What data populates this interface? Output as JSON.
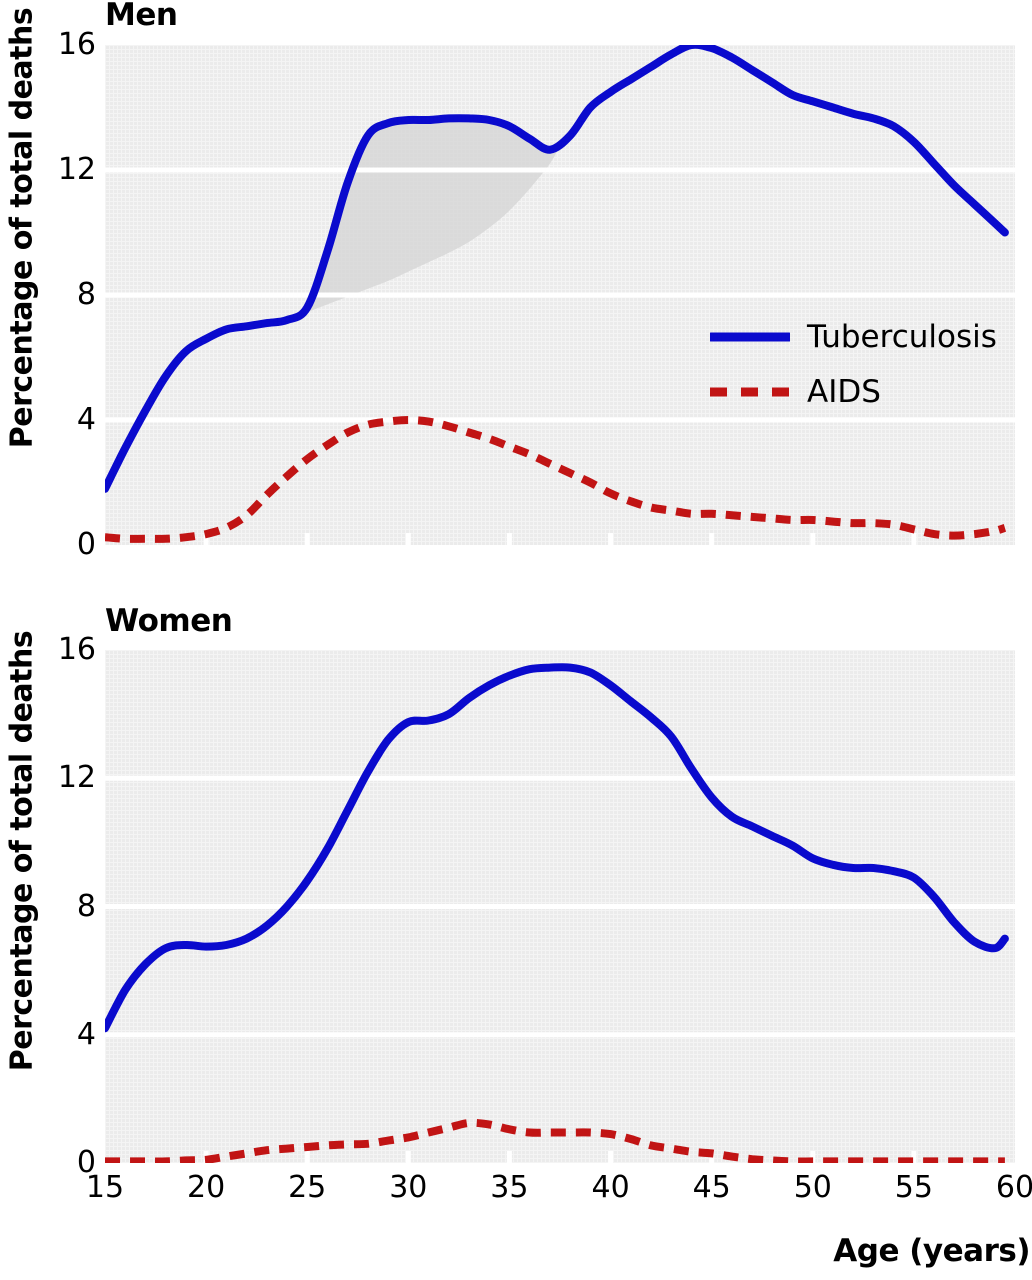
{
  "colors": {
    "tuberculosis": "#0a0acd",
    "aids": "#c11414",
    "plot_bg": "#ebebeb",
    "plot_bg_dot": "#f4f4f4",
    "gridline": "#ffffff",
    "shade": "#d7d7d7",
    "text": "#000000",
    "page_bg": "#ffffff"
  },
  "legend": {
    "items": [
      {
        "label": "Tuberculosis",
        "style": "solid"
      },
      {
        "label": "AIDS",
        "style": "dashed"
      }
    ]
  },
  "chart_data": [
    {
      "type": "line",
      "title": "Men",
      "xlabel": "",
      "ylabel": "Percentage of total deaths",
      "xlim": [
        15,
        60
      ],
      "ylim": [
        0,
        16
      ],
      "xticks": [
        15,
        20,
        25,
        30,
        35,
        40,
        45,
        50,
        55,
        60
      ],
      "yticks": [
        16,
        12,
        8,
        4,
        0
      ],
      "grid": "horizontal-white-on-gray",
      "legend_position": "middle-right",
      "x": [
        15,
        16,
        17,
        18,
        19,
        20,
        21,
        22,
        23,
        24,
        25,
        26,
        27,
        28,
        29,
        30,
        31,
        32,
        33,
        34,
        35,
        36,
        37,
        38,
        39,
        40,
        41,
        42,
        43,
        44,
        45,
        46,
        47,
        48,
        49,
        50,
        51,
        52,
        53,
        54,
        55,
        56,
        57,
        58,
        59,
        59.5
      ],
      "series": [
        {
          "name": "Tuberculosis",
          "style": "solid",
          "color": "#0a0acd",
          "y": [
            1.8,
            3.1,
            4.3,
            5.4,
            6.2,
            6.6,
            6.9,
            7.0,
            7.1,
            7.2,
            7.6,
            9.4,
            11.6,
            13.1,
            13.5,
            13.6,
            13.6,
            13.65,
            13.65,
            13.6,
            13.4,
            13.0,
            12.65,
            13.1,
            14.0,
            14.5,
            14.9,
            15.3,
            15.7,
            16.0,
            15.9,
            15.6,
            15.2,
            14.8,
            14.4,
            14.2,
            14.0,
            13.8,
            13.65,
            13.4,
            12.9,
            12.2,
            11.5,
            10.9,
            10.3,
            10.0
          ]
        },
        {
          "name": "AIDS",
          "style": "dashed",
          "color": "#c11414",
          "y": [
            0.25,
            0.2,
            0.2,
            0.2,
            0.25,
            0.35,
            0.55,
            0.95,
            1.6,
            2.2,
            2.75,
            3.2,
            3.6,
            3.85,
            3.95,
            4.0,
            3.95,
            3.8,
            3.6,
            3.4,
            3.15,
            2.9,
            2.6,
            2.3,
            2.0,
            1.65,
            1.4,
            1.2,
            1.1,
            1.0,
            1.0,
            0.95,
            0.9,
            0.85,
            0.8,
            0.8,
            0.75,
            0.7,
            0.7,
            0.65,
            0.5,
            0.35,
            0.3,
            0.35,
            0.45,
            0.55
          ]
        }
      ],
      "shaded_band": {
        "name": "shaded_area",
        "upper": [
          [
            24,
            7.2
          ],
          [
            25,
            7.6
          ],
          [
            26,
            9.4
          ],
          [
            27,
            11.6
          ],
          [
            28,
            13.1
          ],
          [
            29,
            13.5
          ],
          [
            30,
            13.6
          ],
          [
            31,
            13.6
          ],
          [
            32,
            13.65
          ],
          [
            33,
            13.65
          ],
          [
            34,
            13.6
          ],
          [
            35,
            13.4
          ],
          [
            36,
            13.0
          ],
          [
            37,
            12.65
          ],
          [
            37.5,
            12.8
          ]
        ],
        "lower": [
          [
            24,
            7.2
          ],
          [
            25,
            7.45
          ],
          [
            26,
            7.7
          ],
          [
            27,
            7.95
          ],
          [
            28,
            8.2
          ],
          [
            29,
            8.45
          ],
          [
            30,
            8.75
          ],
          [
            31,
            9.05
          ],
          [
            32,
            9.35
          ],
          [
            33,
            9.7
          ],
          [
            34,
            10.15
          ],
          [
            35,
            10.7
          ],
          [
            36,
            11.4
          ],
          [
            37,
            12.2
          ],
          [
            37.5,
            12.8
          ]
        ]
      }
    },
    {
      "type": "line",
      "title": "Women",
      "xlabel": "Age (years)",
      "ylabel": "Percentage of total deaths",
      "xlim": [
        15,
        60
      ],
      "ylim": [
        0,
        16
      ],
      "xticks": [
        15,
        20,
        25,
        30,
        35,
        40,
        45,
        50,
        55,
        60
      ],
      "yticks": [
        16,
        12,
        8,
        4,
        0
      ],
      "grid": "horizontal-white-on-gray",
      "x": [
        15,
        16,
        17,
        18,
        19,
        20,
        21,
        22,
        23,
        24,
        25,
        26,
        27,
        28,
        29,
        30,
        31,
        32,
        33,
        34,
        35,
        36,
        37,
        38,
        39,
        40,
        41,
        42,
        43,
        44,
        45,
        46,
        47,
        48,
        49,
        50,
        51,
        52,
        53,
        54,
        55,
        56,
        57,
        58,
        59,
        59.5
      ],
      "series": [
        {
          "name": "Tuberculosis",
          "style": "solid",
          "color": "#0a0acd",
          "y": [
            4.2,
            5.4,
            6.2,
            6.7,
            6.8,
            6.75,
            6.8,
            7.0,
            7.4,
            8.0,
            8.8,
            9.8,
            11.0,
            12.2,
            13.2,
            13.75,
            13.8,
            14.0,
            14.5,
            14.9,
            15.2,
            15.4,
            15.45,
            15.45,
            15.3,
            14.9,
            14.4,
            13.9,
            13.3,
            12.3,
            11.4,
            10.8,
            10.5,
            10.2,
            9.9,
            9.5,
            9.3,
            9.2,
            9.2,
            9.1,
            8.9,
            8.3,
            7.5,
            6.9,
            6.7,
            7.0
          ]
        },
        {
          "name": "AIDS",
          "style": "dashed",
          "color": "#c11414",
          "y": [
            0.05,
            0.05,
            0.05,
            0.05,
            0.08,
            0.1,
            0.2,
            0.3,
            0.4,
            0.45,
            0.5,
            0.55,
            0.58,
            0.6,
            0.7,
            0.8,
            0.95,
            1.1,
            1.25,
            1.2,
            1.05,
            0.95,
            0.95,
            0.95,
            0.95,
            0.9,
            0.75,
            0.55,
            0.45,
            0.35,
            0.3,
            0.2,
            0.12,
            0.08,
            0.05,
            0.05,
            0.05,
            0.05,
            0.05,
            0.05,
            0.05,
            0.05,
            0.05,
            0.05,
            0.05,
            0.05
          ]
        }
      ]
    }
  ]
}
